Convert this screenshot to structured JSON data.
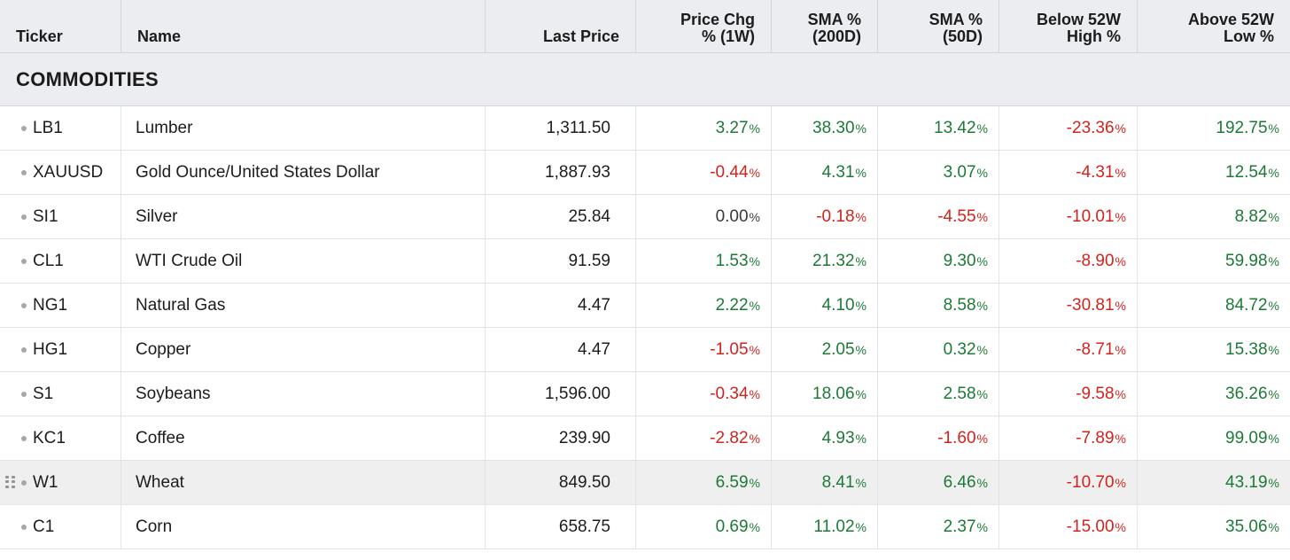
{
  "header": {
    "ticker": "Ticker",
    "name": "Name",
    "last_price": "Last Price",
    "chg_1w_line1": "Price Chg",
    "chg_1w_line2": "% (1W)",
    "sma200_line1": "SMA %",
    "sma200_line2": "(200D)",
    "sma50_line1": "SMA %",
    "sma50_line2": "(50D)",
    "below_high_line1": "Below 52W",
    "below_high_line2": "High %",
    "above_low_line1": "Above 52W",
    "above_low_line2": "Low %"
  },
  "section": {
    "title": "COMMODITIES"
  },
  "percent_symbol": "%",
  "colors": {
    "positive": "#1d7a36",
    "negative": "#d2231c",
    "neutral": "#3a3a3c"
  },
  "rows": [
    {
      "ticker": "LB1",
      "name": "Lumber",
      "last_price": "1,311.50",
      "chg_1w": "3.27",
      "sma200": "38.30",
      "sma50": "13.42",
      "below_high": "-23.36",
      "above_low": "192.75"
    },
    {
      "ticker": "XAUUSD",
      "name": "Gold Ounce/United States Dollar",
      "last_price": "1,887.93",
      "chg_1w": "-0.44",
      "sma200": "4.31",
      "sma50": "3.07",
      "below_high": "-4.31",
      "above_low": "12.54"
    },
    {
      "ticker": "SI1",
      "name": "Silver",
      "last_price": "25.84",
      "chg_1w": "0.00",
      "sma200": "-0.18",
      "sma50": "-4.55",
      "below_high": "-10.01",
      "above_low": "8.82"
    },
    {
      "ticker": "CL1",
      "name": "WTI Crude Oil",
      "last_price": "91.59",
      "chg_1w": "1.53",
      "sma200": "21.32",
      "sma50": "9.30",
      "below_high": "-8.90",
      "above_low": "59.98"
    },
    {
      "ticker": "NG1",
      "name": "Natural Gas",
      "last_price": "4.47",
      "chg_1w": "2.22",
      "sma200": "4.10",
      "sma50": "8.58",
      "below_high": "-30.81",
      "above_low": "84.72"
    },
    {
      "ticker": "HG1",
      "name": "Copper",
      "last_price": "4.47",
      "chg_1w": "-1.05",
      "sma200": "2.05",
      "sma50": "0.32",
      "below_high": "-8.71",
      "above_low": "15.38"
    },
    {
      "ticker": "S1",
      "name": "Soybeans",
      "last_price": "1,596.00",
      "chg_1w": "-0.34",
      "sma200": "18.06",
      "sma50": "2.58",
      "below_high": "-9.58",
      "above_low": "36.26"
    },
    {
      "ticker": "KC1",
      "name": "Coffee",
      "last_price": "239.90",
      "chg_1w": "-2.82",
      "sma200": "4.93",
      "sma50": "-1.60",
      "below_high": "-7.89",
      "above_low": "99.09"
    },
    {
      "ticker": "W1",
      "name": "Wheat",
      "last_price": "849.50",
      "chg_1w": "6.59",
      "sma200": "8.41",
      "sma50": "6.46",
      "below_high": "-10.70",
      "above_low": "43.19",
      "highlighted": true
    },
    {
      "ticker": "C1",
      "name": "Corn",
      "last_price": "658.75",
      "chg_1w": "0.69",
      "sma200": "11.02",
      "sma50": "2.37",
      "below_high": "-15.00",
      "above_low": "35.06"
    }
  ]
}
